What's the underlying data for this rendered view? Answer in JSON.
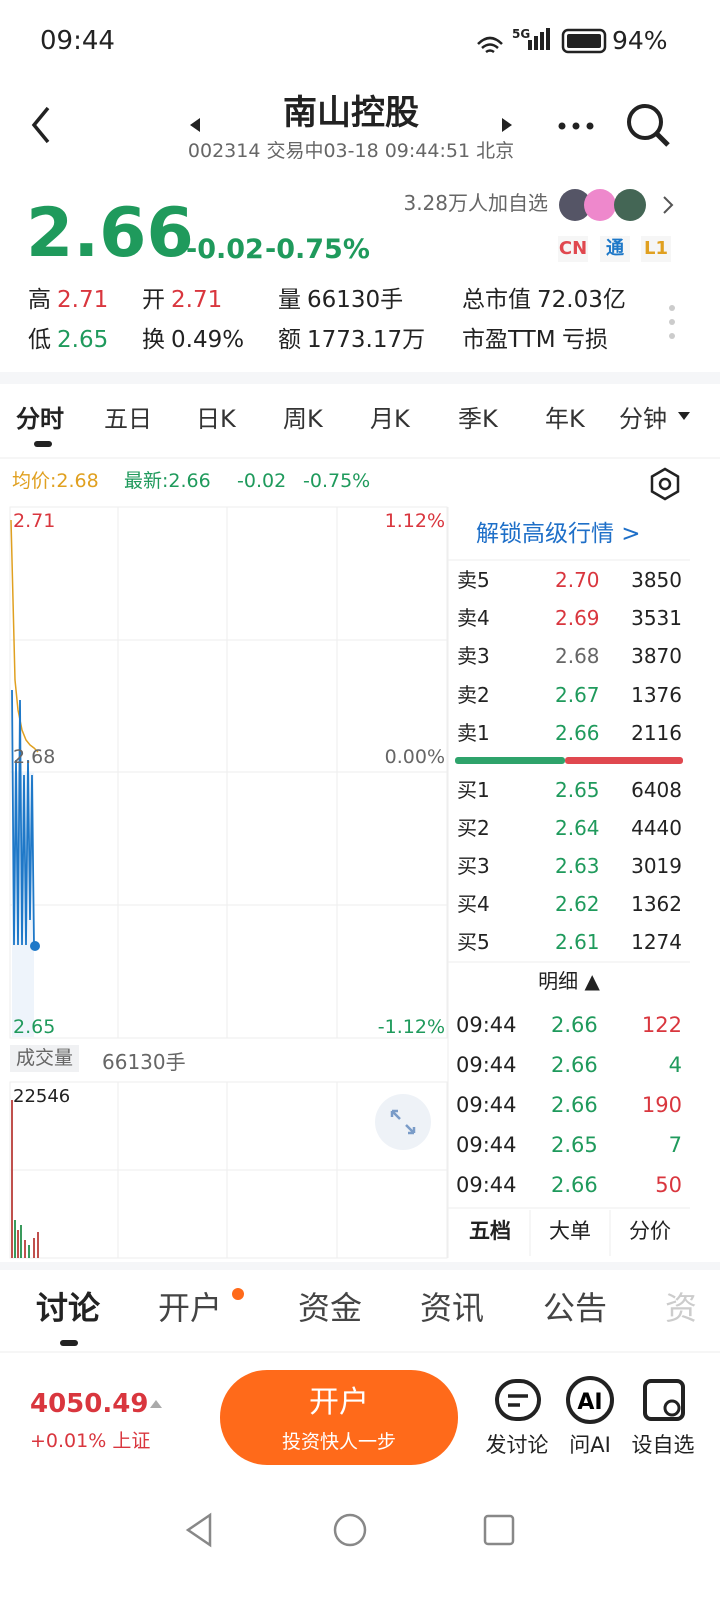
{
  "status": {
    "time": "09:44",
    "network": "5G",
    "battery": "94%"
  },
  "header": {
    "title": "南山控股",
    "subtitle": "002314 交易中03-18 09:44:51 北京"
  },
  "quote": {
    "price": "2.66",
    "change": "-0.02",
    "percent": "-0.75%",
    "watchers": "3.28万人加自选",
    "badges": [
      "CN",
      "通",
      "L1"
    ]
  },
  "stats": [
    {
      "label": "高",
      "value": "2.71",
      "color": "#d9363e"
    },
    {
      "label": "开",
      "value": "2.71",
      "color": "#d9363e"
    },
    {
      "label": "量",
      "value": "66130手",
      "color": "#222"
    },
    {
      "label": "总市值",
      "value": "72.03亿",
      "color": "#222"
    },
    {
      "label": "低",
      "value": "2.65",
      "color": "#1f9a5c"
    },
    {
      "label": "换",
      "value": "0.49%",
      "color": "#222"
    },
    {
      "label": "额",
      "value": "1773.17万",
      "color": "#222"
    },
    {
      "label": "市盈TTM",
      "value": "亏损",
      "color": "#222"
    }
  ],
  "chart_tabs": [
    "分时",
    "五日",
    "日K",
    "周K",
    "月K",
    "季K",
    "年K",
    "分钟"
  ],
  "legend": {
    "avg": "均价:2.68",
    "latest": "最新:2.66",
    "change": "-0.02",
    "percent": "-0.75%"
  },
  "axis": {
    "top": "2.71",
    "top_pct": "1.12%",
    "mid": "2.68",
    "mid_pct": "0.00%",
    "bottom": "2.65",
    "bottom_pct": "-1.12%"
  },
  "volume": {
    "label": "成交量",
    "total": "66130手",
    "max": "22546"
  },
  "orderbook": {
    "unlock": "解锁高级行情 >",
    "sells": [
      [
        "卖5",
        "2.70",
        "3850"
      ],
      [
        "卖4",
        "2.69",
        "3531"
      ],
      [
        "卖3",
        "2.68",
        "3870"
      ],
      [
        "卖2",
        "2.67",
        "1376"
      ],
      [
        "卖1",
        "2.66",
        "2116"
      ]
    ],
    "buys": [
      [
        "买1",
        "2.65",
        "6408"
      ],
      [
        "买2",
        "2.64",
        "4440"
      ],
      [
        "买3",
        "2.63",
        "3019"
      ],
      [
        "买4",
        "2.62",
        "1362"
      ],
      [
        "买5",
        "2.61",
        "1274"
      ]
    ]
  },
  "detail": {
    "title": "明细 ▲",
    "trades": [
      {
        "time": "09:44",
        "price": "2.66",
        "volume": "122",
        "color": "#d9363e"
      },
      {
        "time": "09:44",
        "price": "2.66",
        "volume": "4",
        "color": "#1f9a5c"
      },
      {
        "time": "09:44",
        "price": "2.66",
        "volume": "190",
        "color": "#d9363e"
      },
      {
        "time": "09:44",
        "price": "2.65",
        "volume": "7",
        "color": "#1f9a5c"
      },
      {
        "time": "09:44",
        "price": "2.66",
        "volume": "50",
        "color": "#d9363e"
      }
    ]
  },
  "panel_tabs": [
    "五档",
    "大单",
    "分价"
  ],
  "section_tabs": [
    "讨论",
    "开户",
    "资金",
    "资讯",
    "公告",
    "资"
  ],
  "footer": {
    "index": "4050.49",
    "index_change": "+0.01% 上证",
    "button_title": "开户",
    "button_subtitle": "投资快人一步",
    "actions": [
      "发讨论",
      "问AI",
      "设自选"
    ]
  }
}
